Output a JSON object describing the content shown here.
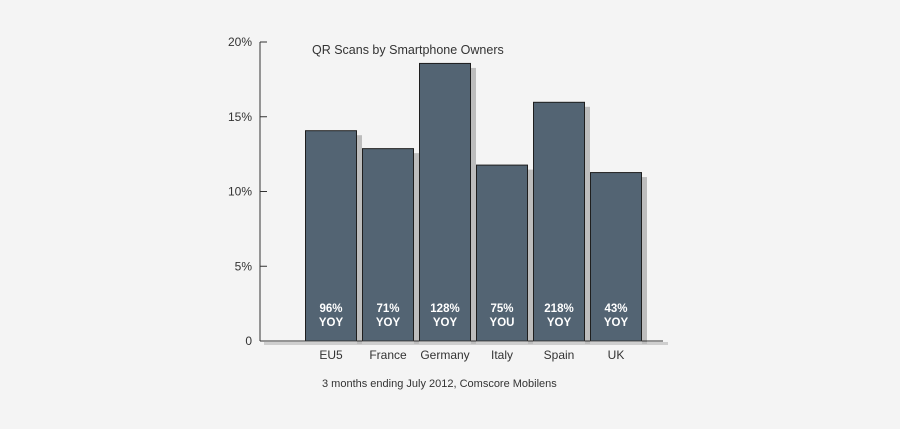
{
  "chart_data": {
    "type": "bar",
    "title": "QR Scans by Smartphone Owners",
    "caption": "3 months ending July 2012, Comscore Mobilens",
    "xlabel": "",
    "ylabel": "",
    "ylim": [
      0,
      20
    ],
    "yticks": [
      0,
      5,
      10,
      15,
      20
    ],
    "ytick_labels": [
      "0",
      "5%",
      "10%",
      "15%",
      "20%"
    ],
    "categories": [
      "EU5",
      "France",
      "Germany",
      "Italy",
      "Spain",
      "UK"
    ],
    "values": [
      14.1,
      12.9,
      18.6,
      11.8,
      16.0,
      11.3
    ],
    "bar_labels": [
      [
        "96%",
        "YOY"
      ],
      [
        "71%",
        "YOY"
      ],
      [
        "128%",
        "YOY"
      ],
      [
        "75%",
        "YOU"
      ],
      [
        "218%",
        "YOY"
      ],
      [
        "43%",
        "YOY"
      ]
    ],
    "colors": {
      "bar": "#536473",
      "bar_stroke": "#1e1e1e",
      "axis": "#333333",
      "shadow": "#bdbdbd",
      "background": "#f4f4f4"
    }
  }
}
